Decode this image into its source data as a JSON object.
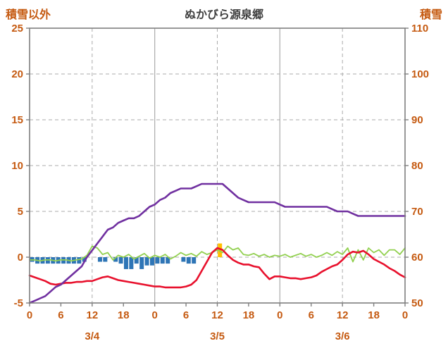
{
  "title": "ぬかびら源泉郷",
  "left_axis": {
    "title": "積雪以外",
    "min": -5,
    "max": 25,
    "ticks": [
      25,
      20,
      15,
      10,
      5,
      0,
      -5
    ]
  },
  "right_axis": {
    "title": "積雪",
    "min": 50,
    "max": 110,
    "ticks": [
      110,
      100,
      90,
      80,
      70,
      60,
      50
    ]
  },
  "x_axis": {
    "hours_total": 72,
    "tick_step": 6,
    "tick_labels": [
      "0",
      "6",
      "12",
      "18",
      "0",
      "6",
      "12",
      "18",
      "0",
      "6",
      "12",
      "18",
      "0"
    ],
    "day_labels": [
      "3/4",
      "3/5",
      "3/6"
    ],
    "day_label_centers": [
      12,
      36,
      60
    ],
    "dashed_vlines_hours": [
      12,
      36,
      60
    ],
    "solid_vlines_hours": [
      24,
      48
    ]
  },
  "colors": {
    "axis_text": "#c55a11",
    "title_text": "#404040",
    "grid": "#ababab",
    "border": "#7f7f7f",
    "purple": "#7030a0",
    "red": "#e8112d",
    "green": "#92d050",
    "blue": "#2e75b6",
    "orange": "#ffc000"
  },
  "chart_data": {
    "type": "line+bar",
    "x_unit": "hour",
    "x_range": [
      0,
      72
    ],
    "left_ylim": [
      -5,
      25
    ],
    "right_ylim": [
      50,
      110
    ],
    "grid": "dashed-horizontal",
    "legend": "none",
    "series": [
      {
        "name": "purple-line",
        "type": "line",
        "axis": "right",
        "color_key": "purple",
        "values": [
          50,
          50.5,
          51,
          51.5,
          52.5,
          53.5,
          54,
          55,
          56,
          57,
          58,
          60,
          61.5,
          63,
          64.5,
          66,
          66.5,
          67.5,
          68,
          68.5,
          68.5,
          69,
          70,
          71,
          71.5,
          72.5,
          73,
          74,
          74.5,
          75,
          75,
          75,
          75.5,
          76,
          76,
          76,
          76,
          76,
          75,
          74,
          73,
          72.5,
          72,
          72,
          72,
          72,
          72,
          72,
          71.5,
          71,
          71,
          71,
          71,
          71,
          71,
          71,
          71,
          71,
          70.5,
          70,
          70,
          70,
          69.5,
          69,
          69,
          69,
          69,
          69,
          69,
          69,
          69,
          69,
          69
        ]
      },
      {
        "name": "red-line",
        "type": "line",
        "axis": "left",
        "color_key": "red",
        "values": [
          -2.0,
          -2.2,
          -2.4,
          -2.6,
          -2.9,
          -3.0,
          -2.9,
          -2.8,
          -2.8,
          -2.7,
          -2.7,
          -2.6,
          -2.6,
          -2.4,
          -2.2,
          -2.1,
          -2.3,
          -2.5,
          -2.6,
          -2.7,
          -2.8,
          -2.9,
          -3.0,
          -3.1,
          -3.2,
          -3.2,
          -3.3,
          -3.3,
          -3.3,
          -3.3,
          -3.2,
          -3.0,
          -2.5,
          -1.5,
          -0.5,
          0.5,
          1.0,
          0.8,
          0.2,
          -0.3,
          -0.6,
          -0.8,
          -0.8,
          -1.0,
          -1.1,
          -1.8,
          -2.4,
          -2.1,
          -2.1,
          -2.2,
          -2.3,
          -2.3,
          -2.4,
          -2.3,
          -2.2,
          -2.0,
          -1.6,
          -1.3,
          -1.0,
          -0.8,
          -0.3,
          0.3,
          0.6,
          0.5,
          0.7,
          0.3,
          -0.2,
          -0.5,
          -0.8,
          -1.2,
          -1.5,
          -1.9,
          -2.2
        ]
      },
      {
        "name": "green-line",
        "type": "line",
        "axis": "left",
        "color_key": "green",
        "values": [
          -0.3,
          -0.3,
          -0.4,
          -0.3,
          -0.3,
          -0.4,
          -0.3,
          -0.3,
          -0.4,
          -0.3,
          -0.2,
          0.2,
          1.2,
          1.0,
          0.3,
          0.5,
          -0.3,
          0.2,
          0.0,
          0.3,
          -0.2,
          0.1,
          0.4,
          -0.1,
          0.2,
          0.0,
          0.3,
          -0.2,
          0.1,
          0.5,
          0.2,
          0.4,
          0.1,
          0.6,
          0.3,
          0.5,
          0.8,
          0.5,
          1.2,
          0.8,
          1.0,
          0.3,
          0.2,
          0.4,
          0.1,
          0.3,
          0.0,
          0.2,
          0.1,
          0.3,
          0.0,
          0.2,
          0.4,
          0.1,
          0.3,
          0.0,
          0.2,
          0.5,
          0.2,
          0.6,
          0.3,
          1.0,
          -0.5,
          0.8,
          -0.3,
          1.0,
          0.5,
          0.8,
          0.2,
          0.8,
          0.8,
          0.3,
          1.0
        ]
      },
      {
        "name": "blue-bars",
        "type": "bar",
        "axis": "left",
        "color_key": "blue",
        "values": [
          -0.5,
          -0.7,
          -0.7,
          -0.7,
          -0.7,
          -0.7,
          -0.7,
          -0.7,
          -0.7,
          -0.7,
          -0.5,
          0,
          0,
          -0.5,
          -0.5,
          0,
          -0.5,
          -0.7,
          -1.3,
          -1.3,
          -0.7,
          -1.3,
          -0.9,
          -0.9,
          -0.7,
          -0.7,
          -0.7,
          0,
          0,
          -0.5,
          -0.7,
          -0.7,
          0,
          0,
          0,
          0,
          0,
          0,
          0,
          0,
          0,
          0,
          0,
          0,
          0,
          0,
          0,
          0,
          0,
          0,
          0,
          0,
          0,
          0,
          0,
          0,
          0,
          0,
          0,
          0,
          0,
          0,
          0,
          0,
          0,
          0,
          0,
          0,
          0,
          0,
          0,
          0
        ]
      },
      {
        "name": "orange-bars",
        "type": "bar",
        "axis": "left",
        "color_key": "orange",
        "values": [
          0,
          0,
          0,
          0,
          0,
          0,
          0,
          0,
          0,
          0,
          0,
          0,
          0,
          0,
          0,
          0,
          0,
          0,
          0,
          0,
          0,
          0,
          0,
          0,
          0,
          0,
          0,
          0,
          0,
          0,
          0,
          0,
          0,
          0,
          0,
          0,
          1.5,
          0,
          0,
          0,
          0,
          0,
          0,
          0,
          0,
          0,
          0,
          0,
          0,
          0,
          0,
          0,
          0,
          0,
          0,
          0,
          0,
          0,
          0,
          0,
          0,
          0,
          0,
          0,
          0,
          0,
          0,
          0,
          0,
          0,
          0,
          0
        ]
      }
    ]
  }
}
